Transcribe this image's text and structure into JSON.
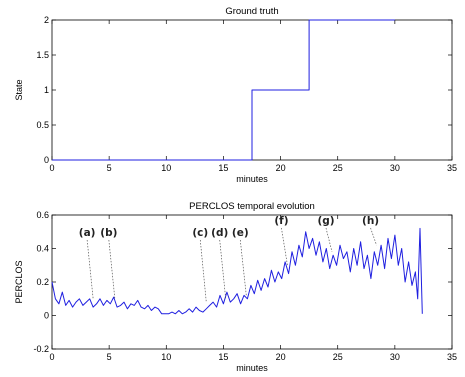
{
  "chart_data": [
    {
      "type": "line",
      "title": "Ground truth",
      "xlabel": "minutes",
      "ylabel": "State",
      "xlim": [
        0,
        35
      ],
      "ylim": [
        0,
        2
      ],
      "xticks": [
        "0",
        "5",
        "10",
        "15",
        "20",
        "25",
        "30",
        "35"
      ],
      "yticks": [
        "0",
        "0.5",
        "1",
        "1.5",
        "2"
      ],
      "grid": false,
      "color": "#1f1fe0",
      "series": [
        {
          "x": [
            0,
            17.5,
            17.5,
            22.5,
            22.5,
            30
          ],
          "y": [
            0,
            0,
            1,
            1,
            2,
            2
          ]
        }
      ]
    },
    {
      "type": "line",
      "title": "PERCLOS temporal evolution",
      "xlabel": "minutes",
      "ylabel": "PERCLOS",
      "xlim": [
        0,
        35
      ],
      "ylim": [
        -0.2,
        0.6
      ],
      "xticks": [
        "0",
        "5",
        "10",
        "15",
        "20",
        "25",
        "30",
        "35"
      ],
      "yticks": [
        "-0.2",
        "0",
        "0.2",
        "0.4",
        "0.6"
      ],
      "grid": false,
      "color": "#1f1fe0",
      "series": [
        {
          "x": [
            0,
            0.3,
            0.6,
            0.9,
            1.2,
            1.5,
            1.8,
            2.1,
            2.4,
            2.7,
            3.0,
            3.3,
            3.6,
            3.9,
            4.2,
            4.5,
            4.8,
            5.1,
            5.4,
            5.7,
            6.0,
            6.3,
            6.6,
            6.9,
            7.2,
            7.5,
            7.8,
            8.1,
            8.4,
            8.7,
            9.0,
            9.3,
            9.6,
            9.9,
            10.2,
            10.5,
            10.8,
            11.1,
            11.4,
            11.7,
            12.0,
            12.3,
            12.6,
            12.9,
            13.2,
            13.5,
            13.8,
            14.1,
            14.4,
            14.7,
            15.0,
            15.3,
            15.6,
            15.9,
            16.2,
            16.5,
            16.8,
            17.1,
            17.4,
            17.7,
            18.0,
            18.3,
            18.6,
            18.9,
            19.2,
            19.5,
            19.8,
            20.1,
            20.4,
            20.7,
            21.0,
            21.3,
            21.6,
            21.9,
            22.2,
            22.5,
            22.8,
            23.1,
            23.4,
            23.7,
            24.0,
            24.3,
            24.6,
            24.9,
            25.2,
            25.5,
            25.8,
            26.1,
            26.4,
            26.7,
            27.0,
            27.3,
            27.6,
            27.9,
            28.2,
            28.5,
            28.8,
            29.1,
            29.4,
            29.7,
            30.0,
            30.3,
            30.6,
            30.9,
            31.2,
            31.5,
            31.8,
            32.0,
            32.2,
            32.4
          ],
          "y": [
            0.2,
            0.1,
            0.07,
            0.14,
            0.06,
            0.09,
            0.05,
            0.08,
            0.1,
            0.06,
            0.08,
            0.1,
            0.05,
            0.07,
            0.1,
            0.06,
            0.09,
            0.07,
            0.11,
            0.05,
            0.06,
            0.08,
            0.04,
            0.07,
            0.06,
            0.09,
            0.05,
            0.04,
            0.06,
            0.03,
            0.05,
            0.04,
            0.01,
            0.01,
            0.01,
            0.02,
            0.01,
            0.03,
            0.01,
            0.02,
            0.04,
            0.02,
            0.05,
            0.03,
            0.02,
            0.04,
            0.06,
            0.08,
            0.05,
            0.12,
            0.07,
            0.14,
            0.08,
            0.1,
            0.13,
            0.07,
            0.12,
            0.1,
            0.18,
            0.13,
            0.21,
            0.15,
            0.22,
            0.17,
            0.27,
            0.2,
            0.26,
            0.22,
            0.32,
            0.25,
            0.38,
            0.3,
            0.42,
            0.35,
            0.5,
            0.4,
            0.46,
            0.36,
            0.44,
            0.32,
            0.4,
            0.28,
            0.36,
            0.3,
            0.42,
            0.34,
            0.38,
            0.26,
            0.4,
            0.3,
            0.44,
            0.28,
            0.36,
            0.22,
            0.38,
            0.3,
            0.42,
            0.28,
            0.46,
            0.34,
            0.48,
            0.3,
            0.4,
            0.2,
            0.32,
            0.18,
            0.26,
            0.1,
            0.52,
            0.01
          ]
        }
      ],
      "annotations": [
        {
          "label": "(a)",
          "x": 3.6,
          "y": 0.1
        },
        {
          "label": "(b)",
          "x": 5.5,
          "y": 0.1
        },
        {
          "label": "(c)",
          "x": 13.5,
          "y": 0.08
        },
        {
          "label": "(d)",
          "x": 15.2,
          "y": 0.1
        },
        {
          "label": "(e)",
          "x": 17.0,
          "y": 0.12
        },
        {
          "label": "(f)",
          "x": 20.6,
          "y": 0.3
        },
        {
          "label": "(g)",
          "x": 24.5,
          "y": 0.38
        },
        {
          "label": "(h)",
          "x": 28.4,
          "y": 0.42
        }
      ]
    }
  ]
}
